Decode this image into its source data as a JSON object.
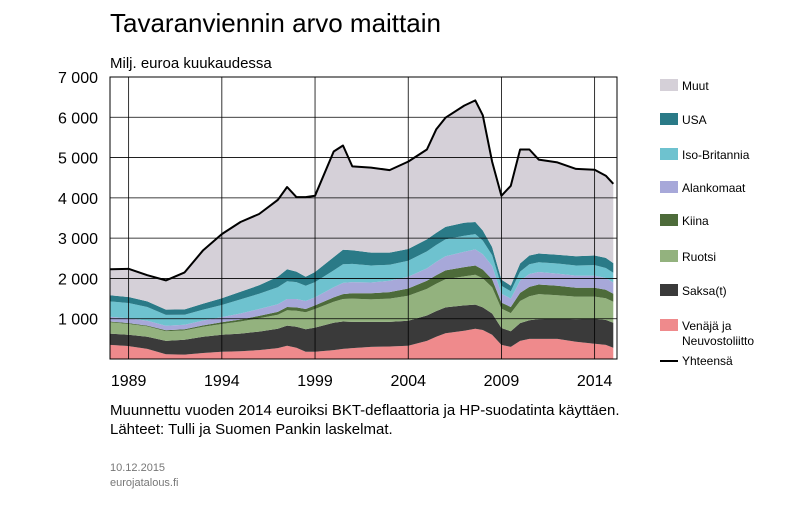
{
  "title": "Tavaranviennin arvo maittain",
  "note_line1": "Muunnettu vuoden 2014 euroiksi BKT-deflaattoria ja HP-suodatinta käyttäen.",
  "note_line2": "Lähteet: Tulli ja Suomen Pankin laskelmat.",
  "date": "10.12.2015",
  "source_site": "eurojatalous.fi",
  "chart_data": {
    "type": "area",
    "stacked": true,
    "ylabel": "Milj. euroa kuukaudessa",
    "xlim": [
      1988,
      2015.2
    ],
    "ylim": [
      0,
      7000
    ],
    "yticks": [
      1000,
      2000,
      3000,
      4000,
      5000,
      6000,
      7000
    ],
    "ytick_labels": [
      "1 000",
      "2 000",
      "3 000",
      "4 000",
      "5 000",
      "6 000",
      "7 000"
    ],
    "xticks": [
      1989,
      1994,
      1999,
      2004,
      2009,
      2014
    ],
    "xtick_labels": [
      "1989",
      "1994",
      "1999",
      "2004",
      "2009",
      "2014"
    ],
    "grid": true,
    "legend_position": "right",
    "x": [
      1988,
      1989,
      1990,
      1991,
      1992,
      1993,
      1994,
      1995,
      1996,
      1997,
      1997.5,
      1998,
      1998.5,
      1999,
      2000,
      2000.5,
      2001,
      2002,
      2003,
      2004,
      2005,
      2005.5,
      2006,
      2007,
      2007.6,
      2008,
      2008.5,
      2009,
      2009.5,
      2010,
      2010.5,
      2011,
      2012,
      2013,
      2014,
      2014.6,
      2015
    ],
    "series": [
      {
        "name": "Venäjä ja Neuvostoliitto",
        "color": "#ef8a8c",
        "values": [
          350,
          320,
          250,
          120,
          110,
          150,
          180,
          190,
          220,
          270,
          330,
          280,
          180,
          180,
          220,
          250,
          270,
          300,
          310,
          330,
          450,
          550,
          640,
          700,
          750,
          720,
          600,
          350,
          300,
          450,
          500,
          500,
          500,
          430,
          380,
          350,
          280
        ]
      },
      {
        "name": "Saksa(t)",
        "color": "#3a3a3a",
        "values": [
          280,
          280,
          300,
          330,
          370,
          400,
          420,
          440,
          460,
          480,
          500,
          520,
          560,
          600,
          680,
          680,
          650,
          620,
          610,
          620,
          630,
          640,
          640,
          630,
          600,
          560,
          530,
          420,
          390,
          440,
          460,
          490,
          500,
          560,
          620,
          620,
          620
        ]
      },
      {
        "name": "Ruotsi",
        "color": "#93b27e",
        "values": [
          280,
          270,
          260,
          240,
          230,
          250,
          270,
          300,
          330,
          350,
          380,
          400,
          420,
          460,
          520,
          560,
          580,
          560,
          580,
          620,
          660,
          680,
          700,
          720,
          740,
          720,
          650,
          480,
          450,
          550,
          600,
          620,
          580,
          560,
          550,
          540,
          520
        ]
      },
      {
        "name": "Kiina",
        "color": "#4d6b3a",
        "values": [
          20,
          20,
          20,
          25,
          30,
          35,
          40,
          50,
          60,
          70,
          80,
          80,
          80,
          90,
          110,
          120,
          130,
          150,
          160,
          180,
          200,
          210,
          220,
          230,
          230,
          220,
          200,
          150,
          150,
          200,
          230,
          240,
          240,
          220,
          220,
          210,
          200
        ]
      },
      {
        "name": "Alankomaat",
        "color": "#a7a8d9",
        "values": [
          120,
          120,
          120,
          110,
          110,
          120,
          130,
          150,
          170,
          190,
          200,
          210,
          200,
          200,
          250,
          280,
          280,
          270,
          280,
          290,
          310,
          330,
          350,
          380,
          400,
          380,
          330,
          220,
          210,
          300,
          320,
          310,
          300,
          300,
          300,
          290,
          280
        ]
      },
      {
        "name": "Iso-Britannia",
        "color": "#6ec2cf",
        "values": [
          380,
          380,
          340,
          270,
          250,
          270,
          300,
          350,
          380,
          420,
          440,
          420,
          380,
          380,
          420,
          460,
          450,
          420,
          400,
          400,
          420,
          420,
          420,
          400,
          380,
          340,
          270,
          200,
          180,
          230,
          240,
          240,
          250,
          250,
          260,
          250,
          240
        ]
      },
      {
        "name": "USA",
        "color": "#2a7a87",
        "values": [
          150,
          150,
          140,
          130,
          130,
          150,
          170,
          190,
          210,
          260,
          300,
          260,
          220,
          250,
          330,
          360,
          340,
          320,
          300,
          290,
          300,
          300,
          310,
          320,
          300,
          250,
          200,
          150,
          140,
          200,
          220,
          220,
          220,
          230,
          240,
          250,
          240
        ]
      },
      {
        "name": "Muut",
        "color": "#d5d0d8",
        "values": [
          650,
          700,
          650,
          725,
          920,
          1325,
          1590,
          1730,
          1770,
          1960,
          2040,
          1850,
          1980,
          1890,
          2620,
          2590,
          2080,
          2110,
          2050,
          2170,
          2230,
          2570,
          2710,
          2910,
          3020,
          2860,
          2120,
          2080,
          2480,
          2830,
          2630,
          2330,
          2290,
          2170,
          2130,
          2040,
          1970
        ]
      }
    ],
    "total": {
      "name": "Yhteensä",
      "color": "#000000",
      "values": [
        2230,
        2240,
        2080,
        1950,
        2150,
        2700,
        3100,
        3400,
        3600,
        3950,
        4270,
        4020,
        4020,
        4050,
        5150,
        5300,
        4780,
        4750,
        4690,
        4900,
        5200,
        5700,
        5990,
        6290,
        6420,
        6050,
        4900,
        4050,
        4300,
        5200,
        5200,
        4950,
        4880,
        4720,
        4700,
        4550,
        4350
      ]
    }
  }
}
